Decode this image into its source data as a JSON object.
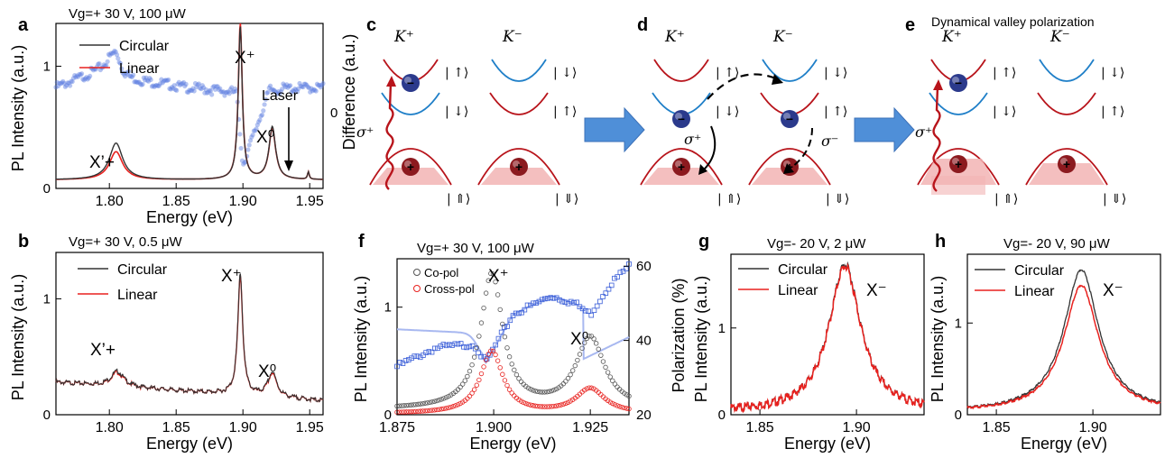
{
  "panels": {
    "a": {
      "letter": "a",
      "title": "Vg=+ 30 V,  100 μW",
      "ylabel": "PL Intensity (a.u.)",
      "y2label": "Difference (a.u.)",
      "xlabel": "Energy (eV)",
      "legend": [
        "Circular",
        "Linear"
      ],
      "xticks": [
        "1.80",
        "1.85",
        "1.90",
        "1.95"
      ],
      "yticks": [
        "0",
        "1"
      ],
      "y2ticks": [
        "0"
      ],
      "labels": {
        "xprime": "X’+",
        "xplus": "X⁺",
        "x0": "X⁰",
        "laser": "Laser"
      }
    },
    "b": {
      "letter": "b",
      "title": "Vg=+ 30 V,  0.5 μW",
      "ylabel": "PL Intensity (a.u.)",
      "xlabel": "Energy (eV)",
      "legend": [
        "Circular",
        "Linear"
      ],
      "xticks": [
        "1.80",
        "1.85",
        "1.90",
        "1.95"
      ],
      "yticks": [
        "0",
        "1"
      ],
      "labels": {
        "xprime": "X’+",
        "xplus": "X⁺",
        "x0": "X⁰"
      }
    },
    "c": {
      "letter": "c",
      "k_plus": "K⁺",
      "k_minus": "K⁻",
      "sigma": "σ⁺",
      "kets": [
        "| ↑⟩",
        "| ↓⟩",
        "| ↓⟩",
        "| ↑⟩",
        "| ⇑⟩",
        "| ⇓⟩"
      ]
    },
    "d": {
      "letter": "d",
      "k_plus": "K⁺",
      "k_minus": "K⁻",
      "sigma_plus": "σ⁺",
      "sigma_minus": "σ⁻",
      "kets": [
        "| ↑⟩",
        "| ↓⟩",
        "| ↓⟩",
        "| ↑⟩",
        "| ⇑⟩",
        "| ⇓⟩"
      ]
    },
    "e": {
      "letter": "e",
      "title": "Dynamical valley polarization",
      "k_plus": "K⁺",
      "k_minus": "K⁻",
      "sigma": "σ⁺",
      "kets": [
        "| ↑⟩",
        "| ↓⟩",
        "| ↓⟩",
        "| ↑⟩",
        "| ⇑⟩",
        "| ⇓⟩"
      ]
    },
    "f": {
      "letter": "f",
      "title": "Vg=+ 30 V,  100 μW",
      "ylabel": "PL Intensity (a.u.)",
      "y2label": "Polarization (%)",
      "xlabel": "Energy (eV)",
      "legend": [
        "Co-pol",
        "Cross-pol"
      ],
      "xticks": [
        "1.875",
        "1.900",
        "1.925"
      ],
      "yticks": [
        "0",
        "1"
      ],
      "y2ticks": [
        "20",
        "40",
        "60"
      ],
      "labels": {
        "xplus": "X⁺",
        "x0": "X⁰"
      }
    },
    "g": {
      "letter": "g",
      "title": "Vg=- 20 V,  2 μW",
      "ylabel": "PL Intensity (a.u.)",
      "xlabel": "Energy (eV)",
      "legend": [
        "Circular",
        "Linear"
      ],
      "xticks": [
        "1.85",
        "1.90"
      ],
      "yticks": [
        "0",
        "1"
      ],
      "labels": {
        "xminus": "X⁻"
      }
    },
    "h": {
      "letter": "h",
      "title": "Vg=- 20 V,  90 μW",
      "ylabel": "PL Intensity (a.u.)",
      "xlabel": "Energy (eV)",
      "legend": [
        "Circular",
        "Linear"
      ],
      "xticks": [
        "1.85",
        "1.90"
      ],
      "yticks": [
        "0",
        "1"
      ],
      "labels": {
        "xminus": "X⁻"
      }
    }
  },
  "colors": {
    "circular": "#333333",
    "linear": "#e8211e",
    "diff": "#5b7ce0",
    "copol": "#555555",
    "crosspol": "#e8211e",
    "pol": "#3a5ed8",
    "band_red": "#b8141b",
    "band_blue": "#1f7fc8",
    "hole_fill": "#f2b4b4",
    "arrow": "#4f8fd8"
  },
  "chart_data": [
    {
      "panel": "a",
      "type": "line",
      "xlim": [
        1.76,
        1.96
      ],
      "ylim": [
        0,
        1.35
      ],
      "y2lim": [
        -1,
        1
      ],
      "series": [
        {
          "name": "Circular",
          "peaks": [
            [
              1.805,
              0.3,
              0.006
            ],
            [
              1.898,
              1.25,
              0.0018
            ],
            [
              1.922,
              0.43,
              0.003
            ],
            [
              1.949,
              0.06,
              0.0008
            ]
          ]
        },
        {
          "name": "Linear",
          "peaks": [
            [
              1.805,
              0.23,
              0.006
            ],
            [
              1.898,
              1.28,
              0.0018
            ],
            [
              1.922,
              0.42,
              0.003
            ],
            [
              1.949,
              0.06,
              0.0008
            ]
          ]
        },
        {
          "name": "Difference",
          "points": [
            [
              1.76,
              0.58
            ],
            [
              1.8,
              1.0
            ],
            [
              1.81,
              0.75
            ],
            [
              1.85,
              0.62
            ],
            [
              1.895,
              0.5
            ],
            [
              1.9,
              -1.0
            ],
            [
              1.92,
              0.55
            ],
            [
              1.96,
              0.58
            ]
          ]
        }
      ]
    },
    {
      "panel": "b",
      "type": "line",
      "xlim": [
        1.76,
        1.96
      ],
      "ylim": [
        0,
        1.4
      ],
      "series": [
        {
          "name": "Circular",
          "peaks": [
            [
              1.806,
              0.13,
              0.006
            ],
            [
              1.898,
              1.05,
              0.0022
            ],
            [
              1.922,
              0.21,
              0.004
            ]
          ]
        },
        {
          "name": "Linear",
          "peaks": [
            [
              1.806,
              0.12,
              0.006
            ],
            [
              1.898,
              1.03,
              0.0022
            ],
            [
              1.922,
              0.2,
              0.004
            ]
          ]
        }
      ]
    },
    {
      "panel": "f",
      "type": "scatter",
      "xlim": [
        1.875,
        1.935
      ],
      "ylim": [
        0,
        1.45
      ],
      "y2lim": [
        20,
        62
      ],
      "series": [
        {
          "name": "Co-pol",
          "peaks": [
            [
              1.8995,
              1.25,
              0.0035
            ],
            [
              1.925,
              0.66,
              0.0045
            ]
          ]
        },
        {
          "name": "Cross-pol",
          "peaks": [
            [
              1.8995,
              0.58,
              0.0035
            ],
            [
              1.925,
              0.23,
              0.0045
            ]
          ]
        },
        {
          "name": "Polarization",
          "points": [
            [
              1.875,
              33
            ],
            [
              1.885,
              38
            ],
            [
              1.895,
              39
            ],
            [
              1.898,
              34
            ],
            [
              1.905,
              47
            ],
            [
              1.915,
              52
            ],
            [
              1.921,
              50
            ],
            [
              1.925,
              47
            ],
            [
              1.93,
              55
            ],
            [
              1.935,
              60
            ]
          ]
        }
      ]
    },
    {
      "panel": "g",
      "type": "line",
      "xlim": [
        1.835,
        1.935
      ],
      "ylim": [
        0,
        1.85
      ],
      "series": [
        {
          "name": "Circular",
          "peaks": [
            [
              1.894,
              1.7,
              0.01
            ]
          ]
        },
        {
          "name": "Linear",
          "peaks": [
            [
              1.894,
              1.68,
              0.01
            ]
          ]
        }
      ]
    },
    {
      "panel": "h",
      "type": "line",
      "xlim": [
        1.835,
        1.935
      ],
      "ylim": [
        0,
        1.75
      ],
      "series": [
        {
          "name": "Circular",
          "peaks": [
            [
              1.894,
              1.55,
              0.011
            ]
          ]
        },
        {
          "name": "Linear",
          "peaks": [
            [
              1.894,
              1.38,
              0.011
            ]
          ]
        }
      ]
    }
  ]
}
